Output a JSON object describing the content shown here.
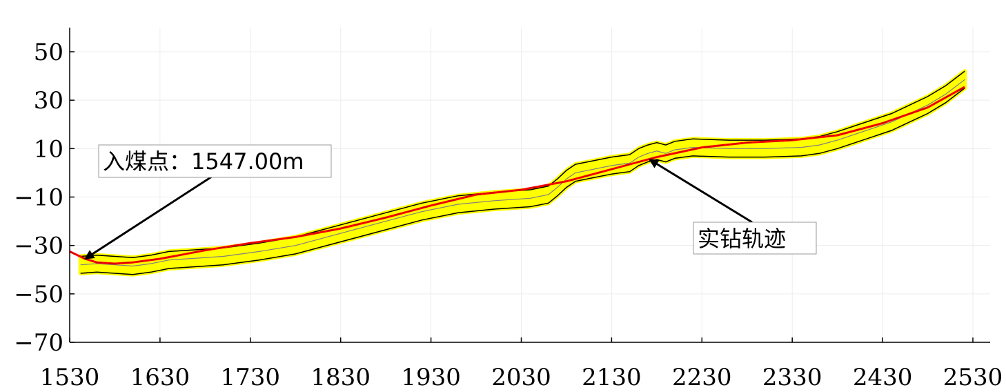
{
  "chart_data": {
    "type": "line",
    "xlabel": "",
    "ylabel": "",
    "xlim": [
      1530,
      2550
    ],
    "ylim": [
      -70,
      60
    ],
    "x_ticks": [
      1530,
      1630,
      1730,
      1830,
      1930,
      2030,
      2130,
      2230,
      2330,
      2430,
      2530
    ],
    "x_tick_labels": [
      "1530",
      "1630",
      "1730",
      "1830",
      "1930",
      "2030",
      "2130",
      "2230",
      "2330",
      "2430",
      "2530"
    ],
    "y_ticks": [
      50,
      30,
      10,
      -10,
      -30,
      -50,
      -70
    ],
    "y_tick_labels": [
      "50",
      "30",
      "10",
      "−10",
      "−30",
      "−50",
      "−70"
    ],
    "grid": true,
    "colors": {
      "band": "#ffff00",
      "band_edge": "#000000",
      "seam_center": "#808080",
      "trajectory": "#ff0000",
      "trajectory_dash": "#c00000"
    },
    "series": [
      {
        "role": "seam-roof",
        "x": [
          1542,
          1560,
          1580,
          1600,
          1620,
          1640,
          1660,
          1700,
          1740,
          1780,
          1800,
          1840,
          1880,
          1920,
          1960,
          2000,
          2040,
          2060,
          2070,
          2080,
          2090,
          2110,
          2130,
          2140,
          2150,
          2160,
          2170,
          2180,
          2190,
          2200,
          2220,
          2260,
          2300,
          2340,
          2360,
          2380,
          2400,
          2440,
          2460,
          2480,
          2500,
          2521
        ],
        "y": [
          -34.5,
          -34,
          -34.5,
          -35,
          -34,
          -32.5,
          -32,
          -31,
          -29,
          -26.5,
          -24.5,
          -20.5,
          -16.5,
          -12.5,
          -9.5,
          -8,
          -7,
          -5.5,
          -2.5,
          1,
          3.5,
          5,
          6.5,
          7,
          7.5,
          10,
          11.5,
          12.5,
          11.5,
          13,
          14,
          13.5,
          13.5,
          14,
          15,
          17,
          19.5,
          24.5,
          28,
          31.5,
          36,
          42
        ]
      },
      {
        "role": "seam-center",
        "x": [
          1542,
          1560,
          1580,
          1600,
          1620,
          1640,
          1660,
          1700,
          1740,
          1780,
          1800,
          1840,
          1880,
          1920,
          1960,
          2000,
          2040,
          2060,
          2070,
          2080,
          2090,
          2110,
          2130,
          2140,
          2150,
          2160,
          2170,
          2180,
          2190,
          2200,
          2220,
          2260,
          2300,
          2340,
          2360,
          2380,
          2400,
          2440,
          2460,
          2480,
          2500,
          2521
        ],
        "y": [
          -38,
          -37.5,
          -38,
          -38.5,
          -37.5,
          -36,
          -35.5,
          -34.5,
          -32.5,
          -30,
          -28,
          -24,
          -20,
          -16,
          -13,
          -11.5,
          -10.5,
          -9,
          -6,
          -2.5,
          0,
          1.5,
          3,
          3.5,
          4,
          6.5,
          8,
          9,
          8,
          9.5,
          10.5,
          10,
          10,
          10.5,
          11.5,
          13.5,
          16,
          21,
          24.5,
          28,
          32.5,
          38.5
        ]
      },
      {
        "role": "seam-floor",
        "x": [
          1542,
          1560,
          1580,
          1600,
          1620,
          1640,
          1660,
          1700,
          1740,
          1780,
          1800,
          1840,
          1880,
          1920,
          1960,
          2000,
          2040,
          2060,
          2070,
          2080,
          2090,
          2110,
          2130,
          2140,
          2150,
          2160,
          2170,
          2180,
          2190,
          2200,
          2220,
          2260,
          2300,
          2340,
          2360,
          2380,
          2400,
          2440,
          2460,
          2480,
          2500,
          2521
        ],
        "y": [
          -41.5,
          -41,
          -41.5,
          -42,
          -41,
          -39.5,
          -39,
          -38,
          -36,
          -33.5,
          -31.5,
          -27.5,
          -23.5,
          -19.5,
          -16.5,
          -15,
          -14,
          -12.5,
          -9.5,
          -6,
          -3.5,
          -2,
          -0.5,
          0,
          0.5,
          3,
          4.5,
          5.5,
          4.5,
          6,
          7,
          6.5,
          6.5,
          7,
          8,
          10,
          12.5,
          17.5,
          21,
          24.5,
          29,
          35
        ]
      },
      {
        "role": "drill-trajectory",
        "x": [
          1530,
          1547,
          1560,
          1580,
          1600,
          1630,
          1680,
          1730,
          1780,
          1830,
          1880,
          1930,
          1980,
          2030,
          2080,
          2130,
          2180,
          2230,
          2280,
          2330,
          2380,
          2430,
          2480,
          2521
        ],
        "y": [
          -32.5,
          -35.5,
          -37,
          -37.5,
          -37,
          -35.5,
          -32,
          -29,
          -26.5,
          -23,
          -18.5,
          -13.5,
          -9,
          -7,
          -3.5,
          1.5,
          6.5,
          10.5,
          12.5,
          13.5,
          15.5,
          20.5,
          27,
          35.5
        ]
      }
    ],
    "annotations": [
      {
        "text": "入煤点：1547.00m",
        "x": 1547,
        "y": -35.5
      },
      {
        "text": "实钻轨迹",
        "x": 2172,
        "y": 5.5
      }
    ]
  }
}
